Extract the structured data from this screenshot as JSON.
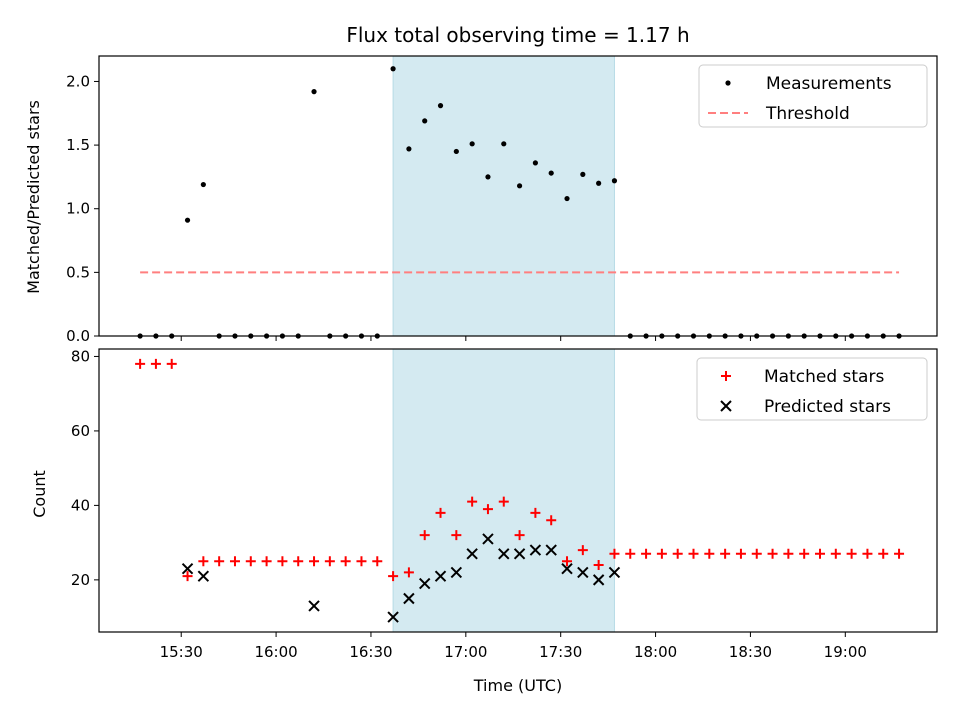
{
  "title": "Flux total observing time = 1.17 h",
  "chart_data": [
    {
      "type": "scatter",
      "ylabel": "Matched/Predicted stars",
      "ylim": [
        0,
        2.2
      ],
      "yticks": [
        0.0,
        0.5,
        1.0,
        1.5,
        2.0
      ],
      "ytick_labels": [
        "0.0",
        "0.5",
        "1.0",
        "1.5",
        "2.0"
      ],
      "legend_position": "top-right",
      "highlight_span": [
        "16:37",
        "17:47"
      ],
      "highlight_color": "#d4eaf1",
      "series": [
        {
          "name": "Measurements",
          "marker": "dot",
          "color": "#000000",
          "x": [
            "15:17",
            "15:22",
            "15:27",
            "15:32",
            "15:37",
            "15:42",
            "15:47",
            "15:52",
            "15:57",
            "16:02",
            "16:07",
            "16:12",
            "16:17",
            "16:22",
            "16:27",
            "16:32",
            "16:37",
            "16:42",
            "16:47",
            "16:52",
            "16:57",
            "17:02",
            "17:07",
            "17:12",
            "17:17",
            "17:22",
            "17:27",
            "17:32",
            "17:37",
            "17:42",
            "17:47",
            "17:52",
            "17:57",
            "18:02",
            "18:07",
            "18:12",
            "18:17",
            "18:22",
            "18:27",
            "18:32",
            "18:37",
            "18:42",
            "18:47",
            "18:52",
            "18:57",
            "19:02",
            "19:07",
            "19:12",
            "19:17"
          ],
          "y": [
            0,
            0,
            0,
            0.91,
            1.19,
            0,
            0,
            0,
            0,
            0,
            0,
            1.92,
            0,
            0,
            0,
            0,
            2.1,
            1.47,
            1.69,
            1.81,
            1.45,
            1.51,
            1.25,
            1.51,
            1.18,
            1.36,
            1.28,
            1.08,
            1.27,
            1.2,
            1.22,
            0,
            0,
            0,
            0,
            0,
            0,
            0,
            0,
            0,
            0,
            0,
            0,
            0,
            0,
            0,
            0,
            0,
            0
          ]
        },
        {
          "name": "Threshold",
          "marker": "dashed-line",
          "color": "#ff7f7f",
          "x": [
            "15:17",
            "19:17"
          ],
          "y": [
            0.5,
            0.5
          ]
        }
      ]
    },
    {
      "type": "scatter",
      "xlabel": "Time (UTC)",
      "ylabel": "Count",
      "ylim": [
        6,
        82
      ],
      "yticks": [
        20,
        40,
        60,
        80
      ],
      "ytick_labels": [
        "20",
        "40",
        "60",
        "80"
      ],
      "xlim": [
        "15:04",
        "19:29"
      ],
      "xticks": [
        "15:30",
        "16:00",
        "16:30",
        "17:00",
        "17:30",
        "18:00",
        "18:30",
        "19:00"
      ],
      "xtick_labels": [
        "15:30",
        "16:00",
        "16:30",
        "17:00",
        "17:30",
        "18:00",
        "18:30",
        "19:00"
      ],
      "legend_position": "top-right",
      "highlight_span": [
        "16:37",
        "17:47"
      ],
      "highlight_color": "#d4eaf1",
      "series": [
        {
          "name": "Matched stars",
          "marker": "plus",
          "color": "#ff0000",
          "x": [
            "15:17",
            "15:22",
            "15:27",
            "15:32",
            "15:37",
            "15:42",
            "15:47",
            "15:52",
            "15:57",
            "16:02",
            "16:07",
            "16:12",
            "16:17",
            "16:22",
            "16:27",
            "16:32",
            "16:37",
            "16:42",
            "16:47",
            "16:52",
            "16:57",
            "17:02",
            "17:07",
            "17:12",
            "17:17",
            "17:22",
            "17:27",
            "17:32",
            "17:37",
            "17:42",
            "17:47",
            "17:52",
            "17:57",
            "18:02",
            "18:07",
            "18:12",
            "18:17",
            "18:22",
            "18:27",
            "18:32",
            "18:37",
            "18:42",
            "18:47",
            "18:52",
            "18:57",
            "19:02",
            "19:07",
            "19:12",
            "19:17"
          ],
          "y": [
            78,
            78,
            78,
            21,
            25,
            25,
            25,
            25,
            25,
            25,
            25,
            25,
            25,
            25,
            25,
            25,
            21,
            22,
            32,
            38,
            32,
            41,
            39,
            41,
            32,
            38,
            36,
            25,
            28,
            24,
            27,
            27,
            27,
            27,
            27,
            27,
            27,
            27,
            27,
            27,
            27,
            27,
            27,
            27,
            27,
            27,
            27,
            27,
            27
          ]
        },
        {
          "name": "Predicted stars",
          "marker": "x",
          "color": "#000000",
          "x": [
            "15:32",
            "15:37",
            "16:12",
            "16:37",
            "16:42",
            "16:47",
            "16:52",
            "16:57",
            "17:02",
            "17:07",
            "17:12",
            "17:17",
            "17:22",
            "17:27",
            "17:32",
            "17:37",
            "17:42",
            "17:47"
          ],
          "y": [
            23,
            21,
            13,
            10,
            15,
            19,
            21,
            22,
            27,
            31,
            27,
            27,
            28,
            28,
            23,
            22,
            20,
            22
          ]
        }
      ]
    }
  ]
}
